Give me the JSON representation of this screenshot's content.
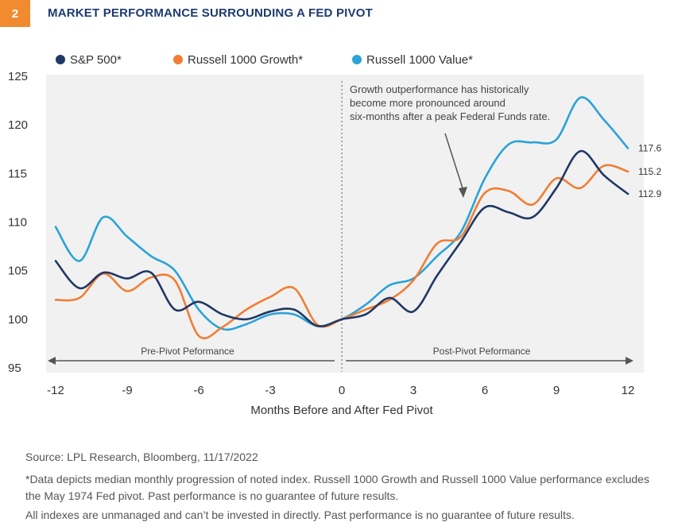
{
  "header": {
    "badge": "2",
    "title": "MARKET PERFORMANCE SURROUNDING A FED PIVOT"
  },
  "chart_data": {
    "type": "line",
    "title": "MARKET PERFORMANCE SURROUNDING A FED PIVOT",
    "xlabel": "Months Before and After Fed Pivot",
    "ylabel": "",
    "xlim": [
      -12,
      12
    ],
    "ylim": [
      95,
      125
    ],
    "xticks": [
      -12,
      -9,
      -6,
      -3,
      0,
      3,
      6,
      9,
      12
    ],
    "yticks": [
      95,
      100,
      105,
      110,
      115,
      120,
      125
    ],
    "legend_position": "top-left",
    "series": [
      {
        "name": "S&P 500*",
        "color": "#1f3864",
        "x": [
          -12,
          -11,
          -10,
          -9,
          -8,
          -7,
          -6,
          -5,
          -4,
          -3,
          -2,
          -1,
          0,
          1,
          2,
          3,
          4,
          5,
          6,
          7,
          8,
          9,
          10,
          11,
          12
        ],
        "values": [
          106.0,
          103.2,
          104.8,
          104.2,
          104.8,
          101.0,
          101.8,
          100.5,
          100.0,
          100.8,
          101.0,
          99.3,
          100.0,
          100.5,
          102.2,
          100.8,
          104.5,
          108.0,
          111.5,
          111.0,
          110.5,
          113.5,
          117.3,
          114.8,
          112.9
        ],
        "end_label": "112.9"
      },
      {
        "name": "Russell 1000 Growth*",
        "color": "#f07d34",
        "x": [
          -12,
          -11,
          -10,
          -9,
          -8,
          -7,
          -6,
          -5,
          -4,
          -3,
          -2,
          -1,
          0,
          1,
          2,
          3,
          4,
          5,
          6,
          7,
          8,
          9,
          10,
          11,
          12
        ],
        "values": [
          102.0,
          102.2,
          104.7,
          102.9,
          104.3,
          104.0,
          98.3,
          99.2,
          101.0,
          102.3,
          103.2,
          99.4,
          100.0,
          101.0,
          102.0,
          104.0,
          107.8,
          108.5,
          113.0,
          113.2,
          111.8,
          114.5,
          113.5,
          115.8,
          115.2
        ],
        "end_label": "115.2"
      },
      {
        "name": "Russell 1000 Value*",
        "color": "#2ba3d6",
        "x": [
          -12,
          -11,
          -10,
          -9,
          -8,
          -7,
          -6,
          -5,
          -4,
          -3,
          -2,
          -1,
          0,
          1,
          2,
          3,
          4,
          5,
          6,
          7,
          8,
          9,
          10,
          11,
          12
        ],
        "values": [
          109.5,
          106.0,
          110.5,
          108.5,
          106.5,
          105.0,
          101.0,
          99.0,
          99.5,
          100.5,
          100.5,
          99.3,
          100.0,
          101.5,
          103.5,
          104.2,
          106.5,
          109.0,
          114.5,
          118.0,
          118.2,
          118.5,
          122.8,
          120.5,
          117.6
        ],
        "end_label": "117.6"
      }
    ],
    "annotations": {
      "callout": [
        "Growth outperformance has historically",
        "become more pronounced around",
        "six-months after a peak Federal Funds rate."
      ],
      "pre_pivot": "Pre-Pivot Peformance",
      "post_pivot": "Post-Pivot Peformance"
    }
  },
  "footer": {
    "source": "Source: LPL Research, Bloomberg,  11/17/2022",
    "note": "*Data depicts median monthly progression of noted index. Russell 1000 Growth and Russell 1000 Value performance excludes the May 1974 Fed pivot. Past performance is no guarantee of future results.",
    "disclaimer": "All indexes are unmanaged and can’t be invested in directly. Past performance is no guarantee of future results."
  }
}
